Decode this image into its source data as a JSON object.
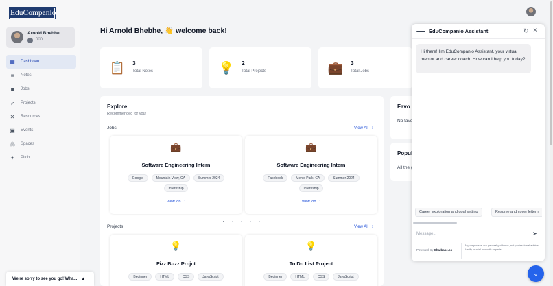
{
  "app": {
    "logo_text": "EduCompanio"
  },
  "profile": {
    "name": "Arnold Bhebhe",
    "coins": "000"
  },
  "sidebar": {
    "items": [
      {
        "label": "Dashboard",
        "icon": "grid-icon",
        "active": true
      },
      {
        "label": "Notes",
        "icon": "lines-icon"
      },
      {
        "label": "Jobs",
        "icon": "briefcase-icon"
      },
      {
        "label": "Projects",
        "icon": "rocket-icon"
      },
      {
        "label": "Resources",
        "icon": "tools-icon"
      },
      {
        "label": "Events",
        "icon": "calendar-icon"
      },
      {
        "label": "Spaces",
        "icon": "spaces-icon"
      },
      {
        "label": "Pitch",
        "icon": "sparkle-icon"
      }
    ]
  },
  "toast": {
    "text": "We're sorry to see you go! Wha..."
  },
  "main": {
    "welcome": "Hi Arnold Bhebhe, 👋 welcome back!",
    "stats": [
      {
        "value": "3",
        "label": "Total Notes",
        "icon": "notes-icon"
      },
      {
        "value": "2",
        "label": "Total Projects",
        "icon": "bulb-icon"
      },
      {
        "value": "3",
        "label": "Total Jobs",
        "icon": "briefcase-icon"
      }
    ],
    "explore": {
      "title": "Explore",
      "subtitle": "Recommended for you!",
      "jobs_heading": "Jobs",
      "projects_heading": "Projects",
      "view_all": "View All",
      "jobs": [
        {
          "title": "Software Engineering Intern",
          "chips": [
            "Google",
            "Mountain View, CA",
            "Summer 2024",
            "Internship"
          ],
          "link": "View job"
        },
        {
          "title": "Software Engineering Intern",
          "chips": [
            "Facebook",
            "Menlo Park, CA",
            "Summer 2024",
            "Internship"
          ],
          "link": "View job"
        }
      ],
      "projects": [
        {
          "title": "Fizz Buzz Projct",
          "chips": [
            "Beginner",
            "HTML",
            "CSS",
            "JavaScript"
          ]
        },
        {
          "title": "To Do List Project",
          "chips": [
            "Beginner",
            "HTML",
            "CSS",
            "JavaScript"
          ]
        }
      ]
    },
    "favorites": {
      "heading": "Favo",
      "text": "No favo love!"
    },
    "popular": {
      "heading": "Popul",
      "text": "All the g resour"
    }
  },
  "chat": {
    "title": "EduCompanio Assistant",
    "greeting": "Hi there! I'm EduCompanio Assistant, your virtual mentor and career coach. How can I help you today?",
    "suggestions": [
      "Career exploration and goal setting",
      "Resume and cover letter r"
    ],
    "placeholder": "Message...",
    "powered_prefix": "Powered By",
    "powered_brand": "Chatbase.co",
    "disclaimer": "My responses are general guidance, not professional advice. Verify crucial info with experts."
  },
  "colors": {
    "accent": "#1d4ed8",
    "fab": "#2563eb",
    "logo_bg": "#1f3b70"
  }
}
